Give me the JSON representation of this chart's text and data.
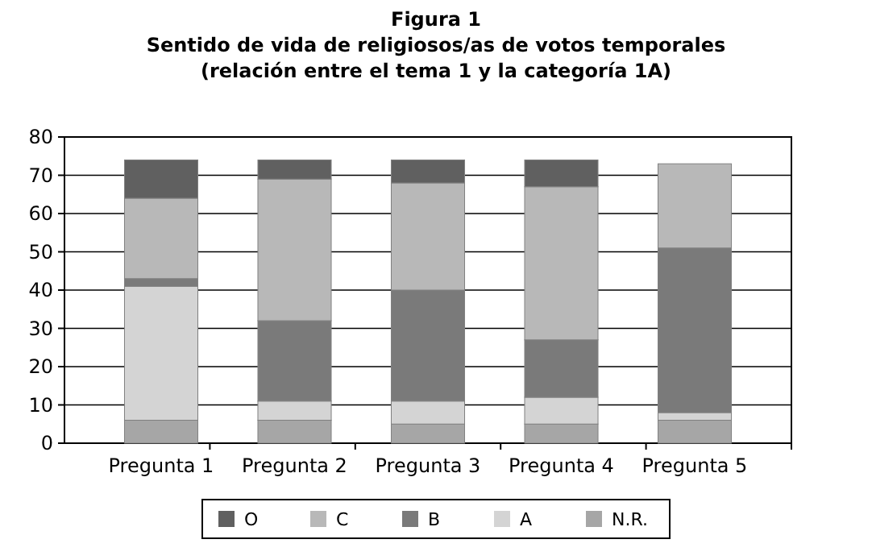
{
  "chart_data": {
    "type": "bar",
    "title": "Figura 1",
    "subtitle": "Sentido de vida de religiosos/as de votos temporales\n(relación entre el tema 1 y la categoría 1A)",
    "categories": [
      "Pregunta 1",
      "Pregunta 2",
      "Pregunta 3",
      "Pregunta 4",
      "Pregunta 5"
    ],
    "stacked": true,
    "ylim": [
      0,
      80
    ],
    "yticks": [
      0,
      10,
      20,
      30,
      40,
      50,
      60,
      70,
      80
    ],
    "grid": "y",
    "legend": "bottom",
    "series": [
      {
        "name": "N.R.",
        "color": "#a6a6a6",
        "values": [
          6,
          6,
          5,
          5,
          6
        ]
      },
      {
        "name": "A",
        "color": "#d4d4d4",
        "values": [
          35,
          5,
          6,
          7,
          2
        ]
      },
      {
        "name": "B",
        "color": "#7a7a7a",
        "values": [
          2,
          21,
          29,
          15,
          43
        ]
      },
      {
        "name": "C",
        "color": "#b8b8b8",
        "values": [
          21,
          37,
          28,
          40,
          22
        ]
      },
      {
        "name": "O",
        "color": "#606060",
        "values": [
          10,
          5,
          6,
          7,
          0
        ]
      }
    ]
  }
}
